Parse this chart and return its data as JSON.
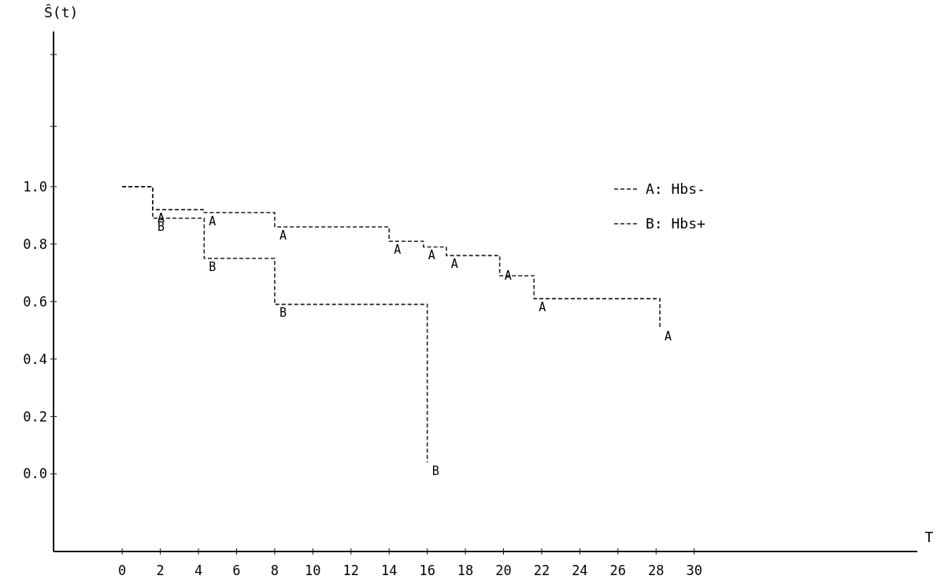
{
  "chart_data": {
    "type": "step",
    "xlabel": "T",
    "ylabel": "Ŝ(t)",
    "xlim": [
      -3.6,
      41.7
    ],
    "ylim": [
      -0.27,
      1.54
    ],
    "xticks": [
      0,
      2,
      4,
      6,
      8,
      10,
      12,
      14,
      16,
      18,
      20,
      22,
      24,
      26,
      28,
      30
    ],
    "yticks": [
      {
        "value": 0,
        "label": "0.0"
      },
      {
        "value": 0.2,
        "label": "0.2"
      },
      {
        "value": 0.4,
        "label": "0.4"
      },
      {
        "value": 0.6,
        "label": "0.6"
      },
      {
        "value": 0.8,
        "label": "0.8"
      },
      {
        "value": 1,
        "label": "1.0"
      },
      {
        "value": 1.21,
        "label": null
      },
      {
        "value": 1.46,
        "label": null
      }
    ],
    "grid": false,
    "legend": "top right",
    "line_style": "dashed",
    "marker": "none",
    "series": [
      {
        "name": "A: Hbs-",
        "color": "#222222",
        "x": [
          0,
          1.6,
          4.3,
          8,
          14,
          15.8,
          17,
          19.8,
          21.6,
          28.2
        ],
        "values": [
          1.0,
          0.92,
          0.91,
          0.86,
          0.81,
          0.79,
          0.76,
          0.69,
          0.61,
          0.51
        ]
      },
      {
        "name": "B: Hbs+",
        "color": "#222222",
        "x": [
          0,
          1.6,
          4.3,
          8,
          16
        ],
        "values": [
          1.0,
          0.89,
          0.75,
          0.59,
          0.04
        ]
      }
    ],
    "annotations": [
      {
        "text": "A",
        "x": 1.6,
        "y": 0.92
      },
      {
        "text": "B",
        "x": 1.6,
        "y": 0.89
      },
      {
        "text": "A",
        "x": 4.3,
        "y": 0.91
      },
      {
        "text": "B",
        "x": 4.3,
        "y": 0.75
      },
      {
        "text": "A",
        "x": 8,
        "y": 0.86
      },
      {
        "text": "B",
        "x": 8,
        "y": 0.59
      },
      {
        "text": "A",
        "x": 14,
        "y": 0.81
      },
      {
        "text": "A",
        "x": 15.8,
        "y": 0.79
      },
      {
        "text": "B",
        "x": 16,
        "y": 0.04
      },
      {
        "text": "A",
        "x": 17,
        "y": 0.76
      },
      {
        "text": "A",
        "x": 19.8,
        "y": 0.72
      },
      {
        "text": "A",
        "x": 21.6,
        "y": 0.61
      },
      {
        "text": "A",
        "x": 28.2,
        "y": 0.51
      }
    ]
  }
}
